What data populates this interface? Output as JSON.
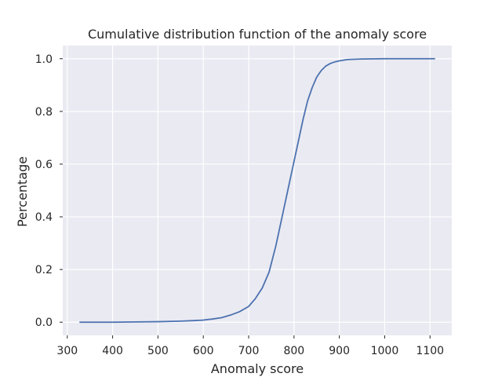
{
  "chart_data": {
    "type": "line",
    "title": "Cumulative distribution function of the anomaly score",
    "xlabel": "Anomaly score",
    "ylabel": "Percentage",
    "xlim": [
      290,
      1148
    ],
    "ylim": [
      -0.05,
      1.05
    ],
    "xticks": [
      300,
      400,
      500,
      600,
      700,
      800,
      900,
      1000,
      1100
    ],
    "yticks": [
      0.0,
      0.2,
      0.4,
      0.6,
      0.8,
      1.0
    ],
    "xtick_labels": [
      "300",
      "400",
      "500",
      "600",
      "700",
      "800",
      "900",
      "1000",
      "1100"
    ],
    "ytick_labels": [
      "0.0",
      "0.2",
      "0.4",
      "0.6",
      "0.8",
      "1.0"
    ],
    "grid": true,
    "background": "#eaeaf2",
    "series": [
      {
        "color": "#4c72b0",
        "x": [
          328,
          400,
          450,
          500,
          550,
          580,
          600,
          620,
          640,
          660,
          680,
          700,
          715,
          730,
          745,
          760,
          775,
          790,
          800,
          810,
          820,
          830,
          840,
          850,
          860,
          870,
          880,
          890,
          900,
          910,
          920,
          950,
          1000,
          1050,
          1110
        ],
        "y": [
          0.0,
          0.0,
          0.001,
          0.002,
          0.004,
          0.006,
          0.008,
          0.012,
          0.017,
          0.027,
          0.04,
          0.06,
          0.09,
          0.13,
          0.19,
          0.29,
          0.41,
          0.53,
          0.61,
          0.69,
          0.77,
          0.84,
          0.89,
          0.93,
          0.955,
          0.972,
          0.982,
          0.988,
          0.992,
          0.995,
          0.997,
          0.999,
          1.0,
          1.0,
          1.0
        ]
      }
    ]
  }
}
